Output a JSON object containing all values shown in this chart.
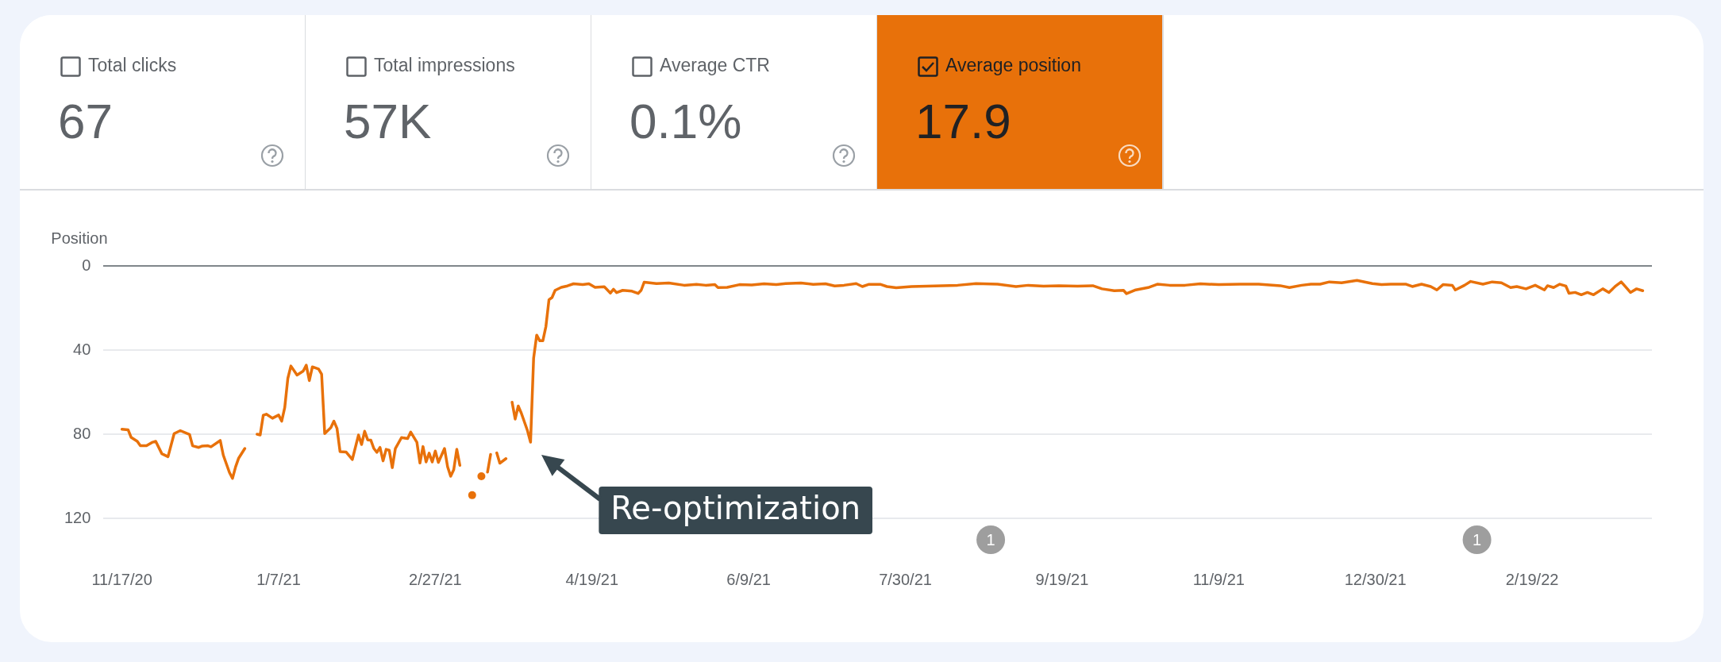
{
  "chart_data": [
    {
      "type": "other",
      "annotations": [
        "Total clicks",
        "67",
        "Total impressions",
        "57K",
        "Average CTR",
        "0.1%",
        "Average position",
        "17.9"
      ],
      "colors": [
        "#ffffff",
        "#ffffff",
        "#ffffff",
        "#e8710a"
      ]
    },
    {
      "type": "line",
      "ylabel": "Position",
      "x": [
        "2020-11-17",
        "2020-11-19",
        "2020-11-20",
        "2020-11-22",
        "2020-11-23",
        "2020-11-25",
        "2020-11-27",
        "2020-11-28",
        "2020-11-30",
        "2020-12-02",
        "2020-12-04",
        "2020-12-06",
        "2020-12-09",
        "2020-12-10",
        "2020-12-12",
        "2020-12-13",
        "2020-12-15",
        "2020-12-16",
        "2020-12-19",
        "2020-12-20",
        "2020-12-22",
        "2020-12-23",
        "2020-12-24",
        "2020-12-25",
        "2020-12-27",
        "2020-12-29",
        "2020-12-31",
        "2021-01-01",
        "2021-01-02",
        "2021-01-03",
        "2021-01-05",
        "2021-01-07",
        "2021-01-08",
        "2021-01-09",
        "2021-01-10",
        "2021-01-11",
        "2021-01-13",
        "2021-01-15",
        "2021-01-16",
        "2021-01-17",
        "2021-01-18",
        "2021-01-20",
        "2021-01-21",
        "2021-01-22",
        "2021-01-24",
        "2021-01-25",
        "2021-01-26",
        "2021-01-27",
        "2021-01-29",
        "2021-01-31",
        "2021-02-02",
        "2021-02-03",
        "2021-02-04",
        "2021-02-05",
        "2021-02-06",
        "2021-02-07",
        "2021-02-08",
        "2021-02-09",
        "2021-02-10",
        "2021-02-11",
        "2021-02-12",
        "2021-02-13",
        "2021-02-14",
        "2021-02-16",
        "2021-02-18",
        "2021-02-19",
        "2021-02-21",
        "2021-02-22",
        "2021-02-23",
        "2021-02-24",
        "2021-02-25",
        "2021-02-26",
        "2021-02-27",
        "2021-02-28",
        "2021-03-02",
        "2021-03-03",
        "2021-03-04",
        "2021-03-05",
        "2021-03-06",
        "2021-03-07",
        "2021-03-09",
        "2021-03-11",
        "2021-03-13",
        "2021-03-14",
        "2021-03-15",
        "2021-03-16",
        "2021-03-17",
        "2021-03-18",
        "2021-03-19",
        "2021-03-20",
        "2021-03-22",
        "2021-03-23",
        "2021-03-24",
        "2021-03-25",
        "2021-03-26",
        "2021-03-27",
        "2021-03-29",
        "2021-03-30",
        "2021-03-31",
        "2021-04-01",
        "2021-04-02",
        "2021-04-03",
        "2021-04-04",
        "2021-04-05",
        "2021-04-06",
        "2021-04-07",
        "2021-04-09",
        "2021-04-11",
        "2021-04-13",
        "2021-04-16",
        "2021-04-18",
        "2021-04-20",
        "2021-04-23",
        "2021-04-25",
        "2021-04-26",
        "2021-04-27",
        "2021-04-29",
        "2021-05-02",
        "2021-05-04",
        "2021-05-05",
        "2021-05-06",
        "2021-05-10",
        "2021-05-14",
        "2021-05-19",
        "2021-05-23",
        "2021-05-26",
        "2021-05-29",
        "2021-05-30",
        "2021-06-02",
        "2021-06-06",
        "2021-06-10",
        "2021-06-14",
        "2021-06-18",
        "2021-06-21",
        "2021-06-26",
        "2021-06-30",
        "2021-07-04",
        "2021-07-07",
        "2021-07-10",
        "2021-07-14",
        "2021-07-16",
        "2021-07-18",
        "2021-07-22",
        "2021-07-24",
        "2021-07-27",
        "2021-08-01",
        "2021-08-06",
        "2021-08-16",
        "2021-08-22",
        "2021-08-29",
        "2021-09-04",
        "2021-09-08",
        "2021-09-13",
        "2021-09-18",
        "2021-09-24",
        "2021-09-29",
        "2021-10-02",
        "2021-10-06",
        "2021-10-09",
        "2021-10-10",
        "2021-10-13",
        "2021-10-17",
        "2021-10-20",
        "2021-10-24",
        "2021-10-29",
        "2021-11-03",
        "2021-11-09",
        "2021-11-16",
        "2021-11-22",
        "2021-11-29",
        "2021-12-02",
        "2021-12-06",
        "2021-12-09",
        "2021-12-12",
        "2021-12-15",
        "2021-12-19",
        "2021-12-24",
        "2021-12-29",
        "2022-01-01",
        "2022-01-04",
        "2022-01-09",
        "2022-01-11",
        "2022-01-14",
        "2022-01-17",
        "2022-01-19",
        "2022-01-21",
        "2022-01-24",
        "2022-01-25",
        "2022-01-28",
        "2022-01-30",
        "2022-02-03",
        "2022-02-06",
        "2022-02-09",
        "2022-02-12",
        "2022-02-14",
        "2022-02-17",
        "2022-02-20",
        "2022-02-23",
        "2022-02-24",
        "2022-02-26",
        "2022-02-28",
        "2022-03-02",
        "2022-03-03",
        "2022-03-05",
        "2022-03-07",
        "2022-03-09",
        "2022-03-11",
        "2022-03-14",
        "2022-03-16",
        "2022-03-18",
        "2022-03-20",
        "2022-03-22",
        "2022-03-23",
        "2022-03-25",
        "2022-03-27"
      ],
      "series": [
        {
          "color": "#e8710a",
          "values": [
            77.6,
            77.9,
            81.5,
            83.4,
            85.5,
            85.5,
            83.8,
            83.4,
            89.3,
            90.7,
            79.7,
            78.3,
            80.1,
            85.5,
            86.3,
            85.7,
            85.5,
            86,
            83,
            90,
            98.2,
            101,
            95.5,
            91.4,
            86.8,
            null,
            80,
            80.4,
            71,
            70.5,
            72.4,
            70.9,
            73.8,
            67.3,
            53.5,
            47.6,
            51.9,
            50,
            47.2,
            54.5,
            48,
            49,
            51.5,
            79.7,
            76.9,
            73.8,
            77.2,
            88.3,
            88.5,
            92,
            80.4,
            84.9,
            78.6,
            82.7,
            82.8,
            86.8,
            88.6,
            86.3,
            92.7,
            87.2,
            87.6,
            95.9,
            86.8,
            81.6,
            82.1,
            79,
            83.8,
            93.7,
            85.9,
            93.2,
            89,
            93.2,
            88,
            93.4,
            86.8,
            95.5,
            100,
            96.9,
            87.2,
            94.8,
            null,
            109,
            null,
            100,
            null,
            98,
            89.6,
            null,
            88.9,
            93.8,
            91.6,
            null,
            64.8,
            72.8,
            66.6,
            70,
            78.3,
            83.8,
            43.9,
            32.9,
            35.6,
            35.6,
            28.8,
            16.1,
            15,
            11.6,
            10.2,
            9.5,
            8.5,
            8.9,
            8.5,
            10.2,
            9.9,
            12.9,
            11.1,
            12.7,
            11.6,
            12,
            13.1,
            11.6,
            7.7,
            8.4,
            8.1,
            9.2,
            8.8,
            9.2,
            8.9,
            10.3,
            10.2,
            8.9,
            9.1,
            8.5,
            8.9,
            8.4,
            8.1,
            8.8,
            8.5,
            9.5,
            9.2,
            8.4,
            9.8,
            8.8,
            8.8,
            9.8,
            10.4,
            9.8,
            9.6,
            9.2,
            8.4,
            8.7,
            9.8,
            9.2,
            9.6,
            9.4,
            9.6,
            9.4,
            10.9,
            11.8,
            11.6,
            13.2,
            11.4,
            10.3,
            8.7,
            9.2,
            9.2,
            8.5,
            8.9,
            8.7,
            8.7,
            9.4,
            10.3,
            9.2,
            8.7,
            8.7,
            7.6,
            8,
            6.9,
            8.4,
            8.9,
            8.7,
            8.7,
            9.8,
            8.7,
            9.8,
            11.4,
            8.9,
            9.2,
            11.4,
            9.2,
            7.4,
            8.7,
            7.6,
            8,
            10.3,
            9.8,
            10.9,
            9.2,
            11.4,
            9.4,
            10.3,
            8.7,
            9.6,
            13,
            12.6,
            13.7,
            12.6,
            13.7,
            10.9,
            12.6,
            9.8,
            7.6,
            10.9,
            12.6,
            10.9,
            11.8
          ]
        }
      ],
      "xlim": [
        "2020-11-11",
        "2022-03-30"
      ],
      "xticks": [
        {
          "value": "2020-11-17",
          "label": "11/17/20"
        },
        {
          "value": "2021-01-07",
          "label": "1/7/21"
        },
        {
          "value": "2021-02-27",
          "label": "2/27/21"
        },
        {
          "value": "2021-04-19",
          "label": "4/19/21"
        },
        {
          "value": "2021-06-09",
          "label": "6/9/21"
        },
        {
          "value": "2021-07-30",
          "label": "7/30/21"
        },
        {
          "value": "2021-09-19",
          "label": "9/19/21"
        },
        {
          "value": "2021-11-09",
          "label": "11/9/21"
        },
        {
          "value": "2021-12-30",
          "label": "12/30/21"
        },
        {
          "value": "2022-02-19",
          "label": "2/19/22"
        }
      ],
      "ylim": [
        120,
        0
      ],
      "yticks": [
        0,
        40,
        80,
        120
      ],
      "grid": "y",
      "annotations": [
        {
          "text": "Re-optimization",
          "x": "2021-03-30",
          "y": 83.8
        },
        "1",
        "1"
      ]
    }
  ]
}
